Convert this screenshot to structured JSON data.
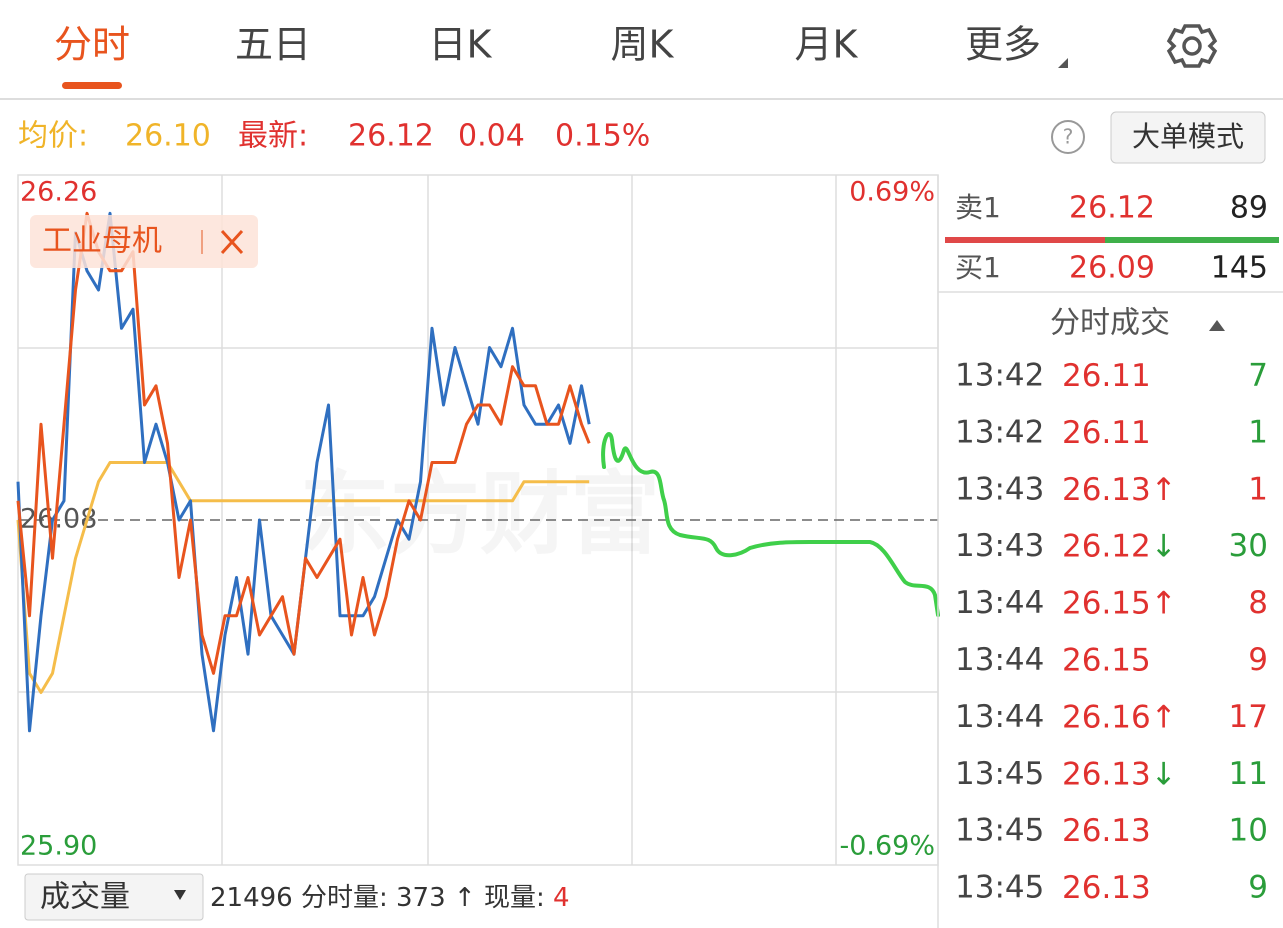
{
  "tabs": [
    "分时",
    "五日",
    "日K",
    "周K",
    "月K",
    "更多"
  ],
  "info": {
    "avg_label": "均价:",
    "avg": "26.10",
    "latest_label": "最新:",
    "latest": "26.12",
    "change": "0.04",
    "change_pct": "0.15%",
    "help": "?",
    "button": "大单模式"
  },
  "chart_data": {
    "type": "line",
    "watermark": "东方财富",
    "x": [
      0,
      3,
      6,
      9,
      12,
      15,
      18,
      21,
      24,
      27,
      30,
      33,
      36,
      39,
      42,
      45,
      48,
      51,
      54,
      57,
      60,
      63,
      66,
      69,
      72,
      75,
      78,
      81,
      84,
      87,
      90,
      93,
      96,
      99,
      102,
      105,
      108,
      111,
      114,
      117,
      120,
      123,
      126,
      129,
      132,
      135,
      138,
      141,
      144,
      147,
      149
    ],
    "xlim": [
      0,
      240
    ],
    "ylim": [
      25.9,
      26.26
    ],
    "yticks": [
      {
        "value": 25.9,
        "label": "25.90"
      },
      {
        "value": 26.08,
        "label": "26.08"
      },
      {
        "value": 26.26,
        "label": "26.26"
      }
    ],
    "y2lim": [
      -0.69,
      0.69
    ],
    "y2ticks": [
      {
        "value": -0.69,
        "label": "-0.69%"
      },
      {
        "value": 0.69,
        "label": "0.69%"
      }
    ],
    "series": [
      {
        "color": "#2f6fc0",
        "values": [
          26.1,
          25.97,
          26.03,
          26.08,
          26.09,
          26.23,
          26.21,
          26.2,
          26.24,
          26.18,
          26.19,
          26.11,
          26.13,
          26.11,
          26.08,
          26.09,
          26.01,
          25.97,
          26.02,
          26.05,
          26.01,
          26.08,
          26.03,
          26.02,
          26.01,
          26.06,
          26.11,
          26.14,
          26.03,
          26.03,
          26.03,
          26.04,
          26.06,
          26.08,
          26.07,
          26.1,
          26.18,
          26.14,
          26.17,
          26.15,
          26.13,
          26.17,
          26.16,
          26.18,
          26.14,
          26.13,
          26.13,
          26.14,
          26.12,
          26.15,
          26.13
        ]
      },
      {
        "name": "工业母机",
        "color": "#e8541e",
        "values": [
          26.09,
          26.03,
          26.13,
          26.06,
          26.13,
          26.2,
          26.24,
          26.22,
          26.21,
          26.21,
          26.22,
          26.14,
          26.15,
          26.12,
          26.05,
          26.08,
          26.02,
          26.0,
          26.03,
          26.03,
          26.05,
          26.02,
          26.03,
          26.04,
          26.01,
          26.06,
          26.05,
          26.06,
          26.07,
          26.02,
          26.05,
          26.02,
          26.04,
          26.07,
          26.09,
          26.08,
          26.11,
          26.11,
          26.11,
          26.13,
          26.14,
          26.14,
          26.13,
          26.16,
          26.15,
          26.15,
          26.13,
          26.13,
          26.15,
          26.13,
          26.12
        ]
      },
      {
        "color": "#f5bd4a",
        "values": [
          26.08,
          26.0,
          25.99,
          26.0,
          26.03,
          26.06,
          26.08,
          26.1,
          26.11,
          26.11,
          26.11,
          26.11,
          26.11,
          26.11,
          26.1,
          26.09,
          26.09,
          26.09,
          26.09,
          26.09,
          26.09,
          26.09,
          26.09,
          26.09,
          26.09,
          26.09,
          26.09,
          26.09,
          26.09,
          26.09,
          26.09,
          26.09,
          26.09,
          26.09,
          26.09,
          26.09,
          26.09,
          26.09,
          26.09,
          26.09,
          26.09,
          26.09,
          26.09,
          26.09,
          26.1,
          26.1,
          26.1,
          26.1,
          26.1,
          26.1,
          26.1
        ]
      }
    ]
  },
  "order_book": [
    {
      "label": "卖1",
      "price": "26.12",
      "volume": "89"
    },
    {
      "label": "买1",
      "price": "26.09",
      "volume": "145"
    }
  ],
  "trades": {
    "title": "分时成交",
    "up_color": "#e0312f",
    "down_color": "#2a9d3a",
    "rows": [
      {
        "time": "13:42",
        "price": "26.11",
        "volume": "7",
        "up": false
      },
      {
        "time": "13:42",
        "price": "26.11",
        "volume": "1",
        "up": false
      },
      {
        "time": "13:43",
        "price": "26.13",
        "arrow": "↑",
        "volume": "1",
        "up": true
      },
      {
        "time": "13:43",
        "price": "26.12",
        "arrow": "↓",
        "volume": "30",
        "up": false
      },
      {
        "time": "13:44",
        "price": "26.15",
        "arrow": "↑",
        "volume": "8",
        "up": true
      },
      {
        "time": "13:44",
        "price": "26.15",
        "volume": "9",
        "up": true
      },
      {
        "time": "13:44",
        "price": "26.16",
        "arrow": "↑",
        "volume": "17",
        "up": true
      },
      {
        "time": "13:45",
        "price": "26.13",
        "arrow": "↓",
        "volume": "11",
        "up": false
      },
      {
        "time": "13:45",
        "price": "26.13",
        "volume": "10",
        "up": false
      },
      {
        "time": "13:45",
        "price": "26.13",
        "volume": "9",
        "up": false
      }
    ]
  },
  "footer": {
    "selector": "成交量",
    "total": "21496",
    "label1": "分时量:",
    "value1": "373",
    "arrow": "↑",
    "label2": "现量:",
    "value2": "4"
  }
}
